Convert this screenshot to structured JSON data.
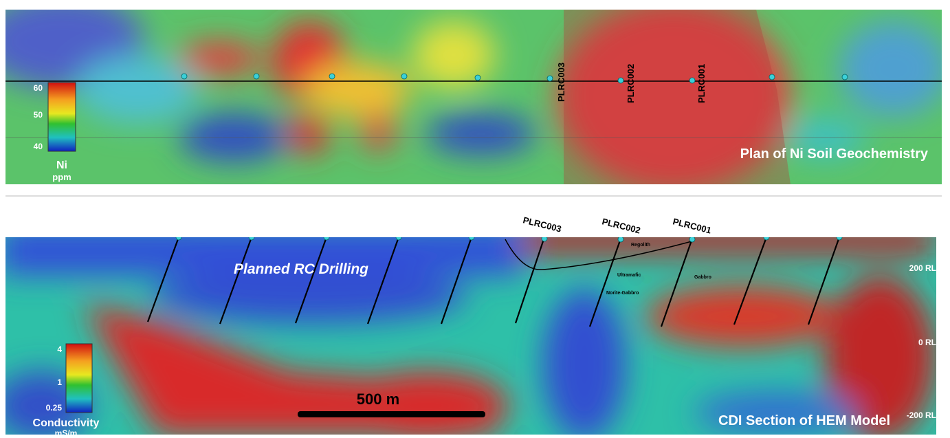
{
  "plan": {
    "title": "Plan of Ni Soil Geochemistry",
    "legend": {
      "label": "Ni",
      "unit": "ppm",
      "ticks": [
        60,
        50,
        40
      ]
    },
    "holes": [
      "PLRC003",
      "PLRC002",
      "PLRC001"
    ]
  },
  "section": {
    "title": "CDI Section of HEM Model",
    "subtitle": "Planned RC Drilling",
    "scale_bar": "500 m",
    "legend": {
      "label": "Conductivity",
      "unit": "mS/m",
      "ticks": [
        4,
        1,
        0.25
      ]
    },
    "holes": [
      "PLRC003",
      "PLRC002",
      "PLRC001"
    ],
    "levels": [
      "200 RL",
      "0 RL",
      "-200 RL"
    ],
    "units": [
      "Regolith",
      "Ultramafic",
      "Norite-Gabbro",
      "Gabbro"
    ]
  }
}
